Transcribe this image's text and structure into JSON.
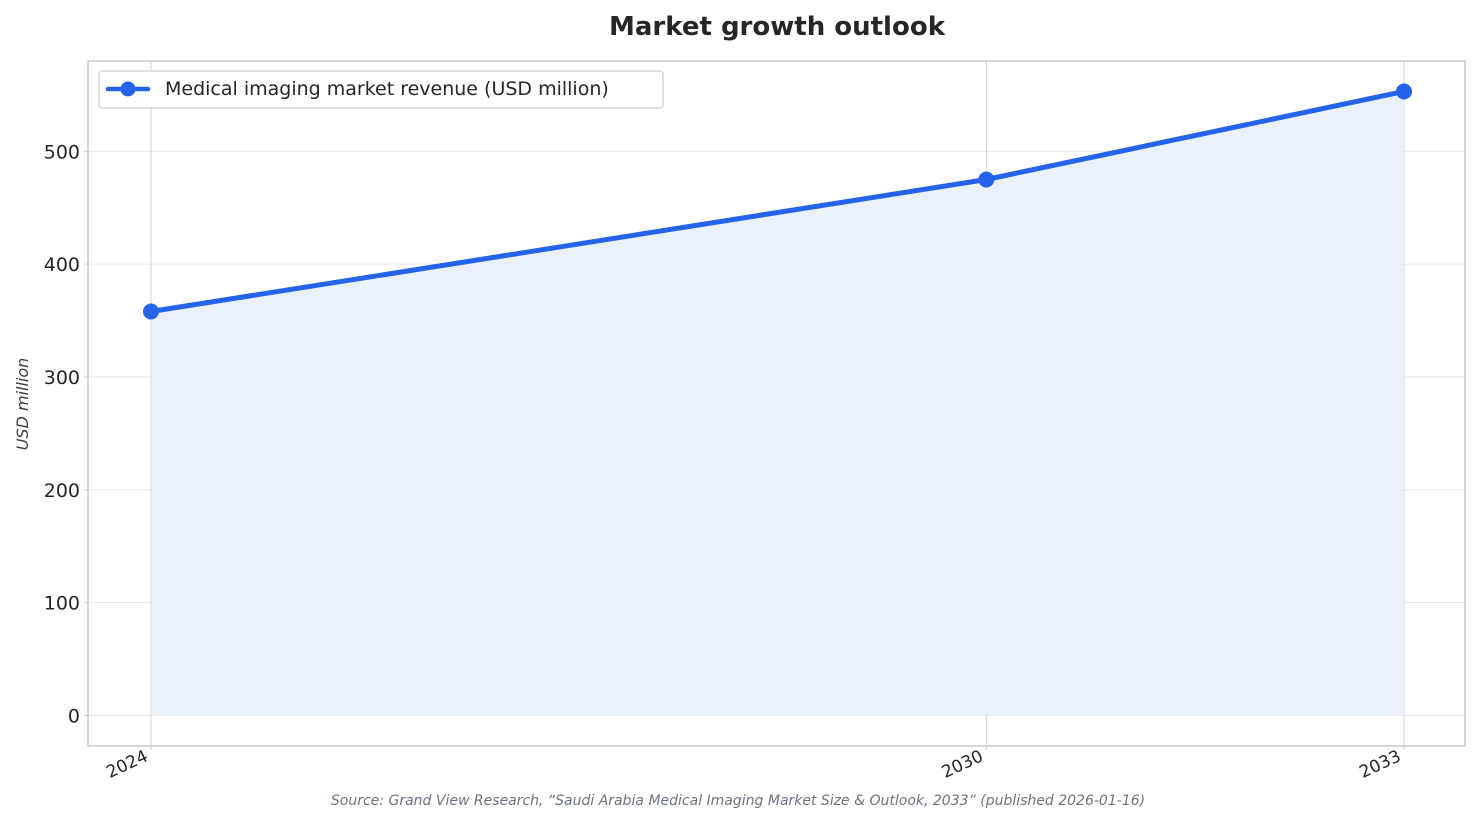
{
  "chart_data": {
    "type": "area",
    "title": "Market growth outlook",
    "xlabel": "",
    "ylabel": "USD million",
    "x": [
      "2024",
      "2030",
      "2033"
    ],
    "series": [
      {
        "name": "Medical imaging market revenue (USD million)",
        "values": [
          358,
          475,
          553
        ],
        "color": "#2563eb",
        "fill_color": "#eaf0fb"
      }
    ],
    "ylim": [
      -27,
      580
    ],
    "yticks": [
      0,
      100,
      200,
      300,
      400,
      500
    ],
    "grid": true,
    "legend_position": "top-left",
    "source": "Source: Grand View Research, “Saudi Arabia Medical Imaging Market Size & Outlook, 2033” (published 2026-01-16)"
  }
}
